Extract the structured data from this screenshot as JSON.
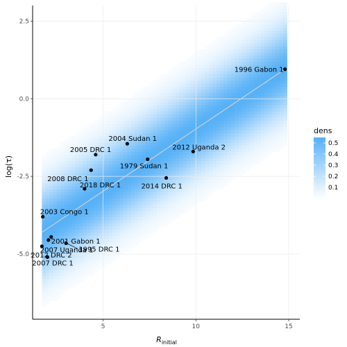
{
  "chart_data": {
    "type": "scatter",
    "xlabel_main": "R",
    "xlabel_sub": "initial",
    "ylabel": "log(τ)",
    "xlim": [
      1.2,
      15.6
    ],
    "ylim": [
      -7.1,
      3.0
    ],
    "x_ticks": [
      5,
      10,
      15
    ],
    "y_ticks": [
      2.5,
      0.0,
      -2.5,
      -5.0
    ],
    "x_tick_labels": [
      "5",
      "10",
      "15"
    ],
    "y_tick_labels": [
      "2.5",
      "0.0",
      "-2.5",
      "-5.0"
    ],
    "grid": true,
    "points": [
      {
        "label": "1996 Gabon 1",
        "x": 14.8,
        "y": 0.95
      },
      {
        "label": "2012 Uganda 2",
        "x": 9.85,
        "y": -1.7
      },
      {
        "label": "2004 Sudan 1",
        "x": 6.3,
        "y": -1.45
      },
      {
        "label": "2005 DRC 1",
        "x": 4.6,
        "y": -1.8
      },
      {
        "label": "1979 Sudan 1",
        "x": 7.4,
        "y": -1.95
      },
      {
        "label": "2008 DRC 1",
        "x": 4.35,
        "y": -2.3
      },
      {
        "label": "2014 DRC 1",
        "x": 8.4,
        "y": -2.55
      },
      {
        "label": "2018 DRC 1",
        "x": 4.0,
        "y": -2.9
      },
      {
        "label": "2003 Congo 1",
        "x": 1.75,
        "y": -3.8
      },
      {
        "label": "2007 Uganda 1",
        "x": 2.2,
        "y": -4.45
      },
      {
        "label": "2001 Gabon 1",
        "x": 2.05,
        "y": -4.55
      },
      {
        "label": "1995 DRC 1",
        "x": 3.0,
        "y": -4.65
      },
      {
        "label": "2012 DRC 2",
        "x": 1.7,
        "y": -4.75
      },
      {
        "label": "2007 DRC 1",
        "x": 2.0,
        "y": -5.1
      }
    ],
    "trend_line": {
      "x": [
        1.7,
        14.8
      ],
      "y": [
        -4.3,
        0.95
      ]
    },
    "density": {
      "x_range": [
        1.7,
        14.8
      ],
      "slope": 0.4,
      "intercept": -4.98,
      "sd": 0.95
    },
    "legend": {
      "title": "dens",
      "ticks": [
        "0.5",
        "0.4",
        "0.3",
        "0.2",
        "0.1"
      ],
      "tick_values": [
        0.5,
        0.4,
        0.3,
        0.2,
        0.1
      ],
      "max": 0.55,
      "position": "right"
    },
    "colors": {
      "low": "#ffffff",
      "high": "#56b1f7",
      "point": "#000000",
      "line": "#d0d0d0",
      "grid": "#ebebeb"
    }
  }
}
